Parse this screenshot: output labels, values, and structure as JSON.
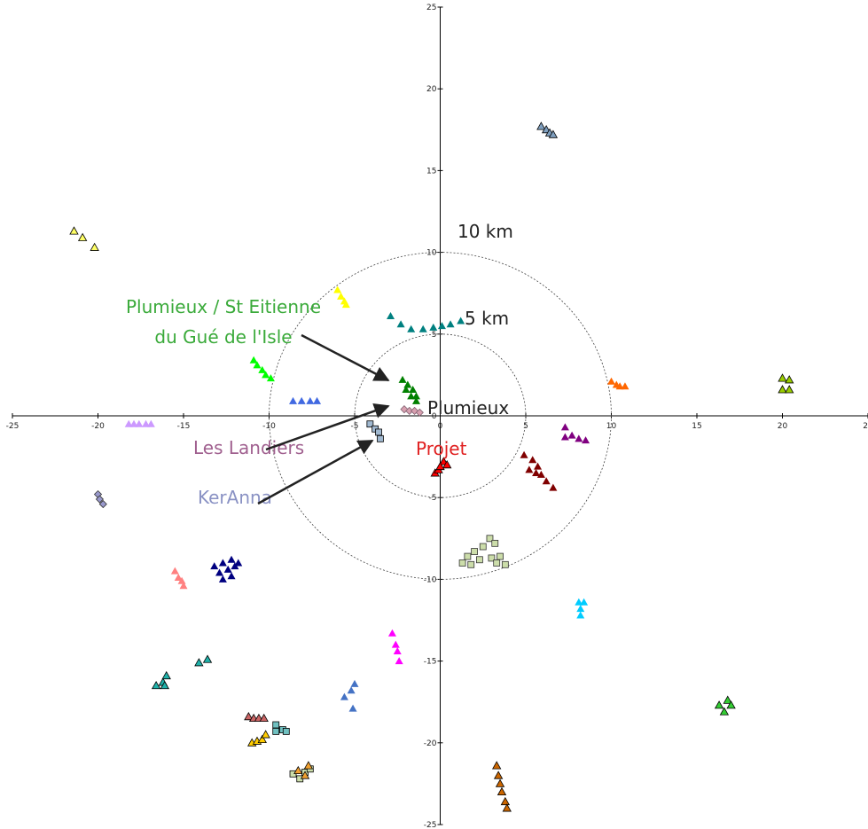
{
  "chart_data": {
    "type": "scatter",
    "xlim": [
      -25,
      25
    ],
    "ylim": [
      -25,
      25
    ],
    "xticks": [
      -25,
      -20,
      -15,
      -10,
      -5,
      0,
      5,
      10,
      15,
      20,
      25
    ],
    "yticks": [
      -25,
      -20,
      -15,
      -10,
      -5,
      0,
      5,
      10,
      15,
      20,
      25
    ],
    "circles": [
      {
        "radius": 5,
        "label": "5 km"
      },
      {
        "radius": 10,
        "label": "10 km"
      }
    ],
    "annotations": [
      {
        "lines": [
          "Plumieux / St Eitienne",
          "du Gué de l'Isle"
        ],
        "color": "#3aaa3a"
      },
      {
        "lines": [
          "Plumieux"
        ],
        "color": "#222222"
      },
      {
        "lines": [
          "Projet"
        ],
        "color": "#e02020"
      },
      {
        "lines": [
          "Les Landiers"
        ],
        "color": "#a0608f"
      },
      {
        "lines": [
          "KerAnna"
        ],
        "color": "#8a92c4"
      }
    ],
    "series": [
      {
        "color": "#ffff66",
        "edge": "#000000",
        "marker": "triangle",
        "x": [
          -21.4,
          -20.9,
          -20.2
        ],
        "y": [
          11.3,
          10.9,
          10.3
        ]
      },
      {
        "color": "#7f9fbf",
        "edge": "#000000",
        "marker": "triangle",
        "x": [
          5.9,
          6.2,
          6.4,
          6.6
        ],
        "y": [
          17.7,
          17.5,
          17.3,
          17.2
        ]
      },
      {
        "color": "#ffff00",
        "marker": "triangle",
        "x": [
          -6.0,
          -5.8,
          -5.6,
          -5.5
        ],
        "y": [
          7.7,
          7.3,
          7.0,
          6.8
        ]
      },
      {
        "color": "#008080",
        "marker": "triangle",
        "x": [
          -2.9,
          -2.3,
          -1.7,
          -1.0,
          -0.4,
          0.1,
          0.6,
          1.2
        ],
        "y": [
          6.1,
          5.6,
          5.3,
          5.3,
          5.4,
          5.5,
          5.6,
          5.8
        ]
      },
      {
        "color": "#00ff00",
        "marker": "triangle",
        "x": [
          -10.9,
          -10.7,
          -10.4,
          -10.2,
          -9.9
        ],
        "y": [
          3.4,
          3.1,
          2.8,
          2.5,
          2.3
        ]
      },
      {
        "color": "#4169e1",
        "marker": "triangle",
        "x": [
          -8.6,
          -8.1,
          -7.6,
          -7.2
        ],
        "y": [
          0.9,
          0.9,
          0.9,
          0.9
        ]
      },
      {
        "color": "#008000",
        "marker": "triangle",
        "x": [
          -2.2,
          -1.9,
          -2.0,
          -1.6,
          -1.7,
          -1.4,
          -1.4
        ],
        "y": [
          2.2,
          1.9,
          1.6,
          1.6,
          1.2,
          1.2,
          0.9
        ]
      },
      {
        "color": "#d8a0b0",
        "edge": "#806070",
        "marker": "diamond",
        "x": [
          -2.1,
          -1.8,
          -1.5,
          -1.2
        ],
        "y": [
          0.4,
          0.3,
          0.3,
          0.2
        ]
      },
      {
        "color": "#a0b8d0",
        "edge": "#000000",
        "marker": "square",
        "x": [
          -4.1,
          -3.8,
          -3.6,
          -3.5
        ],
        "y": [
          -0.5,
          -0.8,
          -1.0,
          -1.4
        ]
      },
      {
        "color": "#ff0000",
        "edge": "#000000",
        "marker": "triangle",
        "x": [
          -0.3,
          -0.1,
          0.2,
          0.4,
          0.0
        ],
        "y": [
          -3.5,
          -3.3,
          -2.8,
          -3.0,
          -3.1
        ]
      },
      {
        "color": "#cc99ff",
        "marker": "triangle",
        "x": [
          -18.2,
          -17.9,
          -17.6,
          -17.2,
          -16.9
        ],
        "y": [
          -0.5,
          -0.5,
          -0.5,
          -0.5,
          -0.5
        ]
      },
      {
        "color": "#ff6600",
        "marker": "triangle",
        "x": [
          10.0,
          10.3,
          10.5,
          10.8
        ],
        "y": [
          2.1,
          1.9,
          1.8,
          1.8
        ]
      },
      {
        "color": "#99cc00",
        "edge": "#000000",
        "marker": "triangle",
        "x": [
          20.0,
          20.4,
          20.0,
          20.4
        ],
        "y": [
          2.3,
          2.2,
          1.6,
          1.6
        ]
      },
      {
        "color": "#800080",
        "marker": "triangle",
        "x": [
          7.3,
          7.7,
          8.1,
          8.5,
          7.3
        ],
        "y": [
          -0.7,
          -1.2,
          -1.4,
          -1.5,
          -1.3
        ]
      },
      {
        "color": "#800000",
        "marker": "triangle",
        "x": [
          4.9,
          5.4,
          5.7,
          5.9,
          6.2,
          6.6,
          5.2,
          5.6
        ],
        "y": [
          -2.4,
          -2.7,
          -3.1,
          -3.6,
          -4.0,
          -4.4,
          -3.3,
          -3.5
        ]
      },
      {
        "color": "#ccddaa",
        "edge": "#333333",
        "marker": "square",
        "x": [
          1.3,
          1.6,
          2.0,
          2.5,
          2.9,
          3.2,
          2.3,
          3.0,
          3.5,
          3.8,
          1.8,
          3.3
        ],
        "y": [
          -9.0,
          -8.6,
          -8.3,
          -8.0,
          -7.5,
          -7.8,
          -8.8,
          -8.7,
          -8.6,
          -9.1,
          -9.1,
          -9.0
        ]
      },
      {
        "color": "#00ccff",
        "marker": "triangle",
        "x": [
          8.1,
          8.4,
          8.2,
          8.2
        ],
        "y": [
          -11.4,
          -11.4,
          -11.8,
          -12.2
        ]
      },
      {
        "color": "#000080",
        "marker": "triangle",
        "x": [
          -13.2,
          -12.7,
          -12.2,
          -11.8,
          -12.9,
          -12.4,
          -12.0,
          -12.7,
          -12.2
        ],
        "y": [
          -9.2,
          -9.0,
          -8.8,
          -9.0,
          -9.6,
          -9.4,
          -9.2,
          -10.0,
          -9.8
        ]
      },
      {
        "color": "#ff8080",
        "marker": "triangle",
        "x": [
          -15.5,
          -15.3,
          -15.1,
          -15.0
        ],
        "y": [
          -9.5,
          -9.9,
          -10.1,
          -10.4
        ]
      },
      {
        "color": "#9999cc",
        "edge": "#333333",
        "marker": "diamond",
        "x": [
          -20.0,
          -19.9,
          -19.7
        ],
        "y": [
          -4.8,
          -5.1,
          -5.4
        ]
      },
      {
        "color": "#ff00ff",
        "marker": "triangle",
        "x": [
          -2.8,
          -2.6,
          -2.5,
          -2.4
        ],
        "y": [
          -13.3,
          -14.0,
          -14.4,
          -15.0
        ]
      },
      {
        "color": "#20b2aa",
        "edge": "#000000",
        "marker": "triangle",
        "x": [
          -14.1,
          -13.6,
          -16.6,
          -16.2,
          -16.0,
          -16.1
        ],
        "y": [
          -15.1,
          -14.9,
          -16.5,
          -16.3,
          -15.9,
          -16.5
        ]
      },
      {
        "color": "#4472c4",
        "marker": "triangle",
        "x": [
          -5.6,
          -5.2,
          -5.0,
          -5.1
        ],
        "y": [
          -17.2,
          -16.8,
          -16.4,
          -17.9
        ]
      },
      {
        "color": "#33cc33",
        "edge": "#000000",
        "marker": "triangle",
        "x": [
          16.3,
          16.8,
          17.0,
          16.6
        ],
        "y": [
          -17.7,
          -17.4,
          -17.7,
          -18.1
        ]
      },
      {
        "color": "#cc6666",
        "edge": "#000000",
        "marker": "triangle",
        "x": [
          -11.2,
          -10.9,
          -10.6,
          -10.3
        ],
        "y": [
          -18.4,
          -18.5,
          -18.5,
          -18.5
        ]
      },
      {
        "color": "#70c0c0",
        "edge": "#000000",
        "marker": "square",
        "x": [
          -9.6,
          -9.2,
          -9.0,
          -9.6
        ],
        "y": [
          -18.9,
          -19.2,
          -19.3,
          -19.3
        ]
      },
      {
        "color": "#ffcc00",
        "edge": "#000000",
        "marker": "triangle",
        "x": [
          -11.0,
          -10.7,
          -10.4,
          -10.2
        ],
        "y": [
          -20.0,
          -19.9,
          -19.8,
          -19.5
        ]
      },
      {
        "color": "#ccddaa",
        "edge": "#000000",
        "marker": "square",
        "x": [
          -8.6,
          -8.2,
          -7.9,
          -7.6
        ],
        "y": [
          -21.9,
          -22.2,
          -21.8,
          -21.6
        ]
      },
      {
        "color": "#f0a030",
        "edge": "#000000",
        "marker": "triangle",
        "x": [
          -8.3,
          -7.7,
          -7.9
        ],
        "y": [
          -21.7,
          -21.4,
          -22.0
        ]
      },
      {
        "color": "#cc6600",
        "edge": "#000000",
        "marker": "triangle",
        "x": [
          3.3,
          3.4,
          3.5,
          3.6,
          3.8,
          3.9
        ],
        "y": [
          -21.4,
          -22.0,
          -22.5,
          -23.0,
          -23.6,
          -24.0
        ]
      }
    ]
  }
}
